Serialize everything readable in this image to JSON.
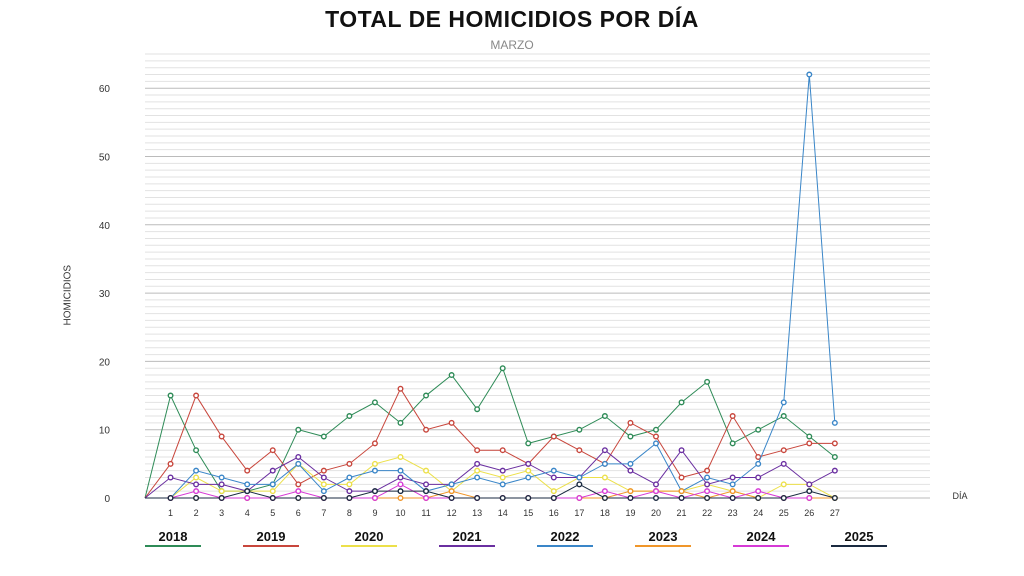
{
  "chart_data": {
    "type": "line",
    "title": "TOTAL DE HOMICIDIOS POR DÍA",
    "subtitle": "MARZO",
    "xlabel": "DÍA",
    "ylabel": "HOMICIDIOS",
    "ylim": [
      0,
      65
    ],
    "yticks": [
      0,
      10,
      20,
      30,
      40,
      50,
      60
    ],
    "x": [
      1,
      2,
      3,
      4,
      5,
      6,
      7,
      8,
      9,
      10,
      11,
      12,
      13,
      14,
      15,
      16,
      17,
      18,
      19,
      20,
      21,
      22,
      23,
      24,
      25,
      26,
      27
    ],
    "grid": true,
    "legend_placement": "bottom",
    "series": [
      {
        "name": "2018",
        "color": "#2e8b57",
        "values": [
          15,
          7,
          1,
          1,
          2,
          10,
          9,
          12,
          14,
          11,
          15,
          18,
          13,
          19,
          8,
          9,
          10,
          12,
          9,
          10,
          14,
          17,
          8,
          10,
          12,
          9,
          6
        ]
      },
      {
        "name": "2019",
        "color": "#c8463c",
        "values": [
          5,
          15,
          9,
          4,
          7,
          2,
          4,
          5,
          8,
          16,
          10,
          11,
          7,
          7,
          5,
          9,
          7,
          5,
          11,
          9,
          3,
          4,
          12,
          6,
          7,
          8,
          8
        ]
      },
      {
        "name": "2020",
        "color": "#ece04a",
        "values": [
          0,
          3,
          1,
          1,
          1,
          5,
          2,
          2,
          5,
          6,
          4,
          1,
          4,
          3,
          4,
          1,
          3,
          3,
          1,
          1,
          1,
          2,
          1,
          0,
          2,
          2,
          0
        ]
      },
      {
        "name": "2021",
        "color": "#6a2fa0",
        "values": [
          3,
          2,
          2,
          1,
          4,
          6,
          3,
          1,
          1,
          3,
          2,
          2,
          5,
          4,
          5,
          3,
          3,
          7,
          4,
          2,
          7,
          2,
          3,
          3,
          5,
          2,
          4
        ]
      },
      {
        "name": "2022",
        "color": "#3a86c8",
        "values": [
          0,
          4,
          3,
          2,
          2,
          5,
          1,
          3,
          4,
          4,
          1,
          2,
          3,
          2,
          3,
          4,
          3,
          5,
          5,
          8,
          1,
          3,
          2,
          5,
          14,
          62,
          11
        ]
      },
      {
        "name": "2023",
        "color": "#f0962a",
        "values": [
          0,
          0,
          0,
          0,
          0,
          0,
          0,
          0,
          0,
          0,
          0,
          1,
          0,
          0,
          0,
          0,
          0,
          0,
          1,
          1,
          1,
          0,
          1,
          0,
          0,
          0,
          0
        ]
      },
      {
        "name": "2024",
        "color": "#d63ad6",
        "values": [
          0,
          1,
          0,
          0,
          0,
          1,
          0,
          0,
          0,
          2,
          0,
          0,
          0,
          0,
          0,
          0,
          0,
          1,
          0,
          1,
          0,
          1,
          0,
          1,
          0,
          0,
          null
        ]
      },
      {
        "name": "2025",
        "color": "#1a2a40",
        "values": [
          0,
          0,
          0,
          1,
          0,
          0,
          0,
          0,
          1,
          1,
          1,
          0,
          0,
          0,
          0,
          0,
          2,
          0,
          0,
          0,
          0,
          0,
          0,
          0,
          0,
          1,
          0
        ]
      }
    ]
  }
}
